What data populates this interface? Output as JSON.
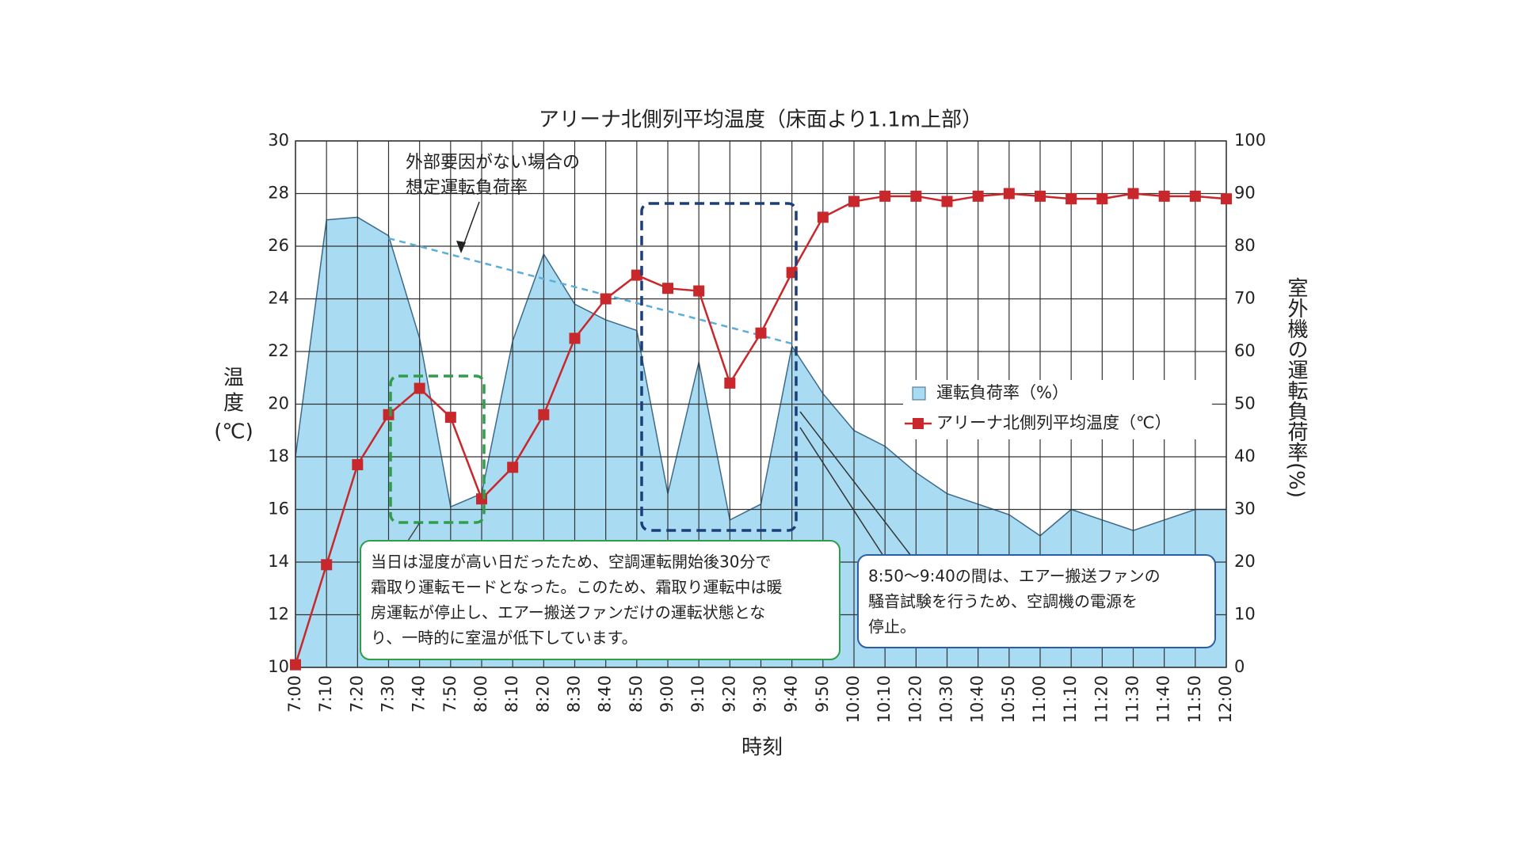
{
  "chart_data": {
    "type": "area-line",
    "title": "アリーナ北側列平均温度（床面より1.1m上部）",
    "x_label": "時刻",
    "y_label": [
      "温",
      "度",
      "(℃)"
    ],
    "y2_label": "室外機の運転負荷率(%)",
    "categories": [
      "7:00",
      "7:10",
      "7:20",
      "7:30",
      "7:40",
      "7:50",
      "8:00",
      "8:10",
      "8:20",
      "8:30",
      "8:40",
      "8:50",
      "9:00",
      "9:10",
      "9:20",
      "9:30",
      "9:40",
      "9:50",
      "10:00",
      "10:10",
      "10:20",
      "10:30",
      "10:40",
      "10:50",
      "11:00",
      "11:10",
      "11:20",
      "11:30",
      "11:40",
      "11:50",
      "12:00"
    ],
    "series": [
      {
        "name": "運転負荷率（%）",
        "type": "area",
        "axis": "y2",
        "color": "#a9dcf3",
        "edge": "#3d6a8a",
        "values": [
          40,
          85,
          85.5,
          82,
          62.5,
          30.5,
          33,
          62,
          78.5,
          69,
          66,
          64,
          33,
          58,
          28,
          31,
          61,
          52,
          45,
          42,
          37,
          33,
          31,
          29,
          25,
          30,
          28,
          26,
          28,
          30,
          30
        ]
      },
      {
        "name": "アリーナ北側列平均温度（℃）",
        "type": "line",
        "axis": "y",
        "color": "#c8282c",
        "values": [
          10.1,
          13.9,
          17.7,
          19.6,
          20.6,
          19.5,
          16.4,
          17.6,
          19.6,
          22.5,
          24.0,
          24.9,
          24.4,
          24.3,
          20.8,
          22.7,
          25.0,
          27.1,
          27.7,
          27.9,
          27.9,
          27.7,
          27.9,
          28.0,
          27.9,
          27.8,
          27.8,
          28.0,
          27.9,
          27.9,
          27.8
        ]
      }
    ],
    "estimate": {
      "label": [
        "外部要因がない場合の",
        "想定運転負荷率"
      ],
      "axis": "y2",
      "color": "#5aaed8",
      "values": [
        null,
        null,
        null,
        81.5,
        null,
        null,
        null,
        null,
        null,
        null,
        null,
        null,
        null,
        null,
        null,
        null,
        61.5,
        null,
        null,
        null,
        null,
        null,
        null,
        null,
        null,
        null,
        null,
        null,
        null,
        null,
        null
      ]
    },
    "notes": [
      {
        "color": "#2e9e4a",
        "lines": [
          "当日は湿度が高い日だったため、空調運転開始後30分で",
          "霜取り運転モードとなった。このため、霜取り運転中は暖",
          "房運転が停止し、エアー搬送ファンだけの運転状態とな",
          "り、一時的に室温が低下しています。"
        ]
      },
      {
        "color": "#2a5fa8",
        "lines": [
          "8:50～9:40の間は、エアー搬送ファンの",
          "騒音試験を行うため、空調機の電源を",
          "停止。"
        ]
      }
    ],
    "ylim": [
      10,
      30
    ],
    "yticks": [
      10,
      12,
      14,
      16,
      18,
      20,
      22,
      24,
      26,
      28,
      30
    ],
    "y2lim": [
      0,
      100
    ],
    "y2ticks": [
      0,
      10,
      20,
      30,
      40,
      50,
      60,
      70,
      80,
      90,
      100
    ],
    "grid": true
  }
}
